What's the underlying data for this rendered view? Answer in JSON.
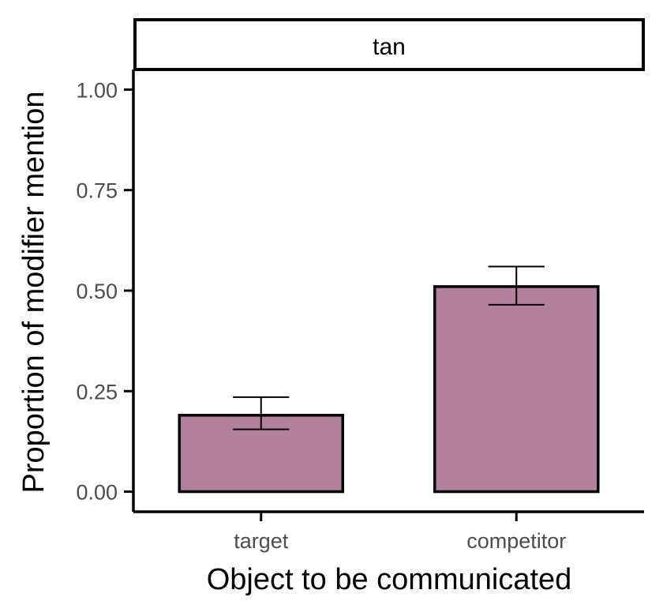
{
  "chart_data": {
    "type": "bar",
    "facet_label": "tan",
    "categories": [
      "target",
      "competitor"
    ],
    "values": [
      0.19,
      0.51
    ],
    "error_low": [
      0.155,
      0.465
    ],
    "error_high": [
      0.235,
      0.56
    ],
    "xlabel": "Object to be communicated",
    "ylabel": "Proportion of modifier mention",
    "ylim": [
      -0.05,
      1.05
    ],
    "y_ticks": [
      0,
      0.25,
      0.5,
      0.75,
      1
    ],
    "y_tick_labels": [
      "0.00",
      "0.25",
      "0.50",
      "0.75",
      "1.00"
    ],
    "grid": false,
    "legend": "none",
    "colors": {
      "bar_fill": "#b2809c",
      "bar_stroke": "#000000",
      "axis": "#000000",
      "tick_text": "#4d4d4d"
    }
  }
}
